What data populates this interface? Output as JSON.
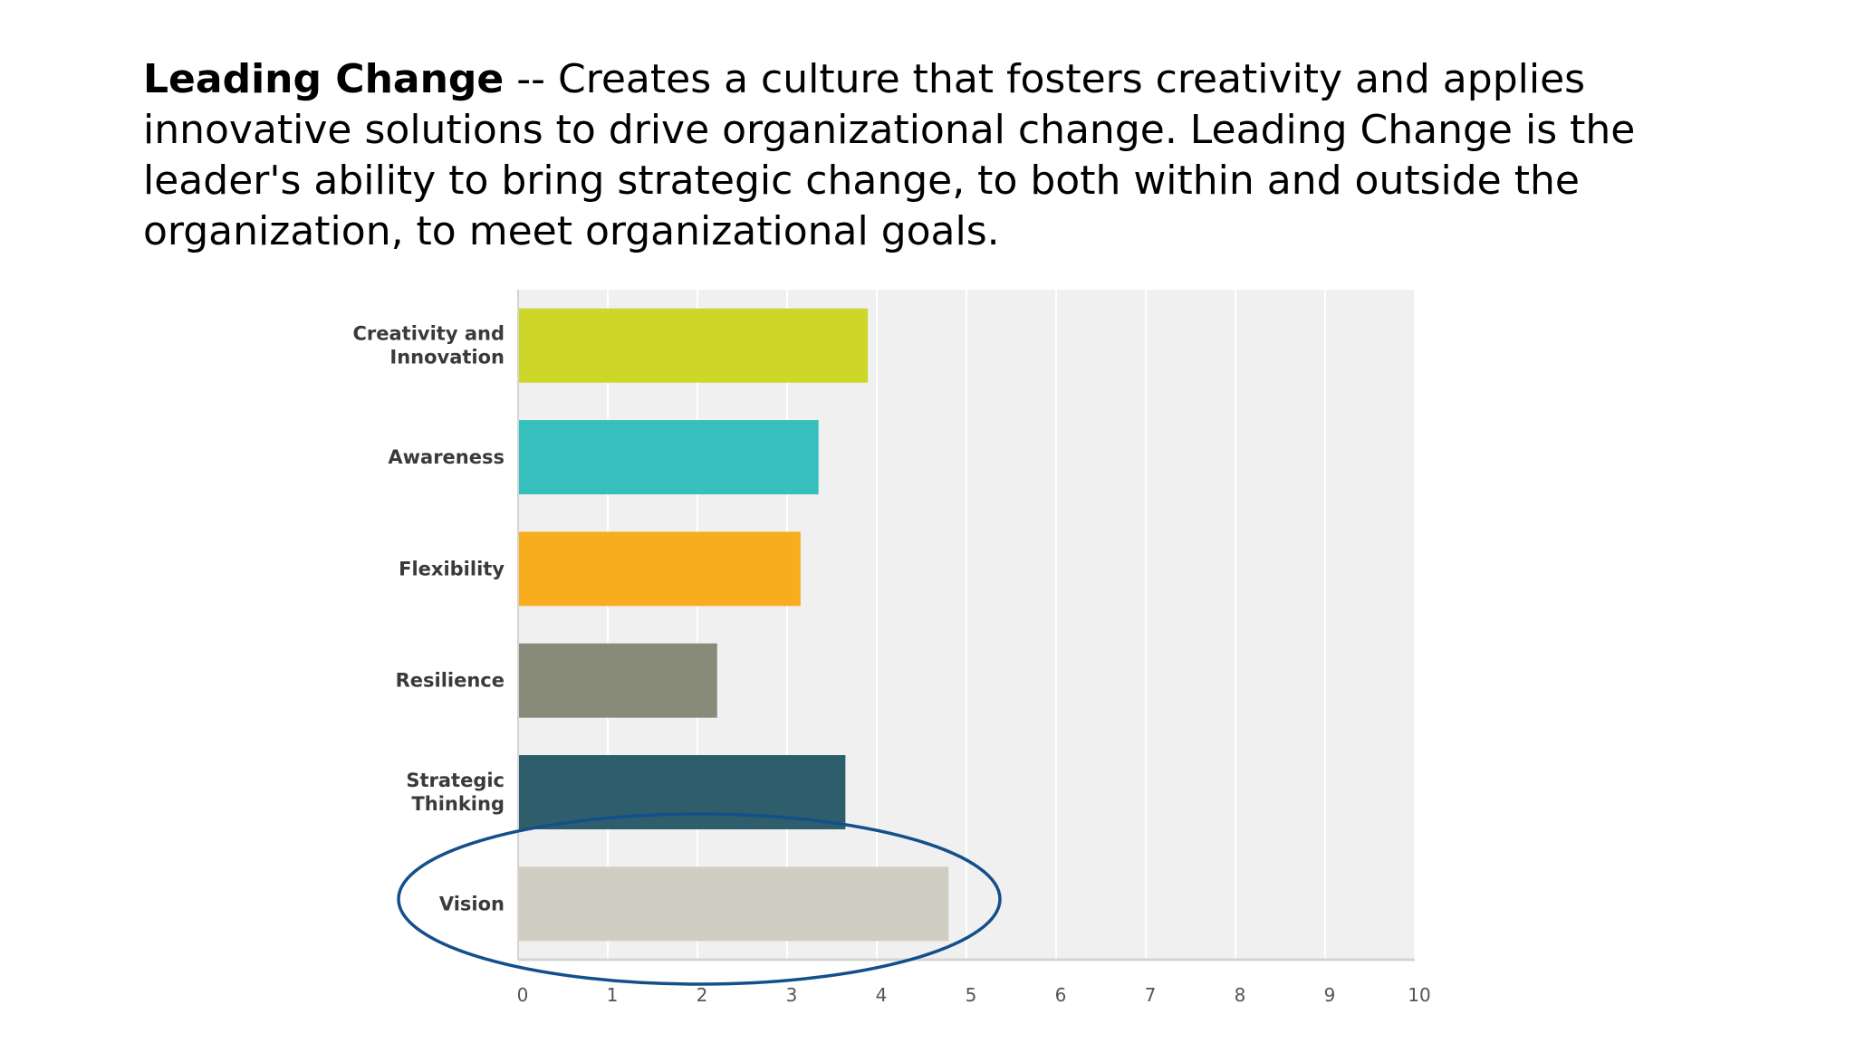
{
  "slide": {
    "heading_bold": "Leading Change",
    "heading_rest": " -- Creates a culture that fosters creativity and applies innovative solutions to drive organizational change. Leading Change is the leader's ability to bring strategic change, to both within and outside the organization, to meet organizational goals."
  },
  "chart_data": {
    "type": "bar",
    "orientation": "horizontal",
    "categories": [
      [
        "Creativity and",
        "Innovation"
      ],
      [
        "Awareness"
      ],
      [
        "Flexibility"
      ],
      [
        "Resilience"
      ],
      [
        "Strategic",
        "Thinking"
      ],
      [
        "Vision"
      ]
    ],
    "values": [
      3.9,
      3.35,
      3.15,
      2.22,
      3.65,
      4.8
    ],
    "colors": [
      "#cdd629",
      "#35bfbd",
      "#f8ad1f",
      "#888a7a",
      "#2e5e6c",
      "#d0cec2"
    ],
    "xlim": [
      0,
      10
    ],
    "xticks": [
      "0",
      "1",
      "2",
      "3",
      "4",
      "5",
      "6",
      "7",
      "8",
      "9",
      "10"
    ],
    "grid": true,
    "plot_background": "#f0f0f1",
    "annotation": {
      "type": "ellipse",
      "target": "Vision",
      "color": "#13508a"
    }
  }
}
